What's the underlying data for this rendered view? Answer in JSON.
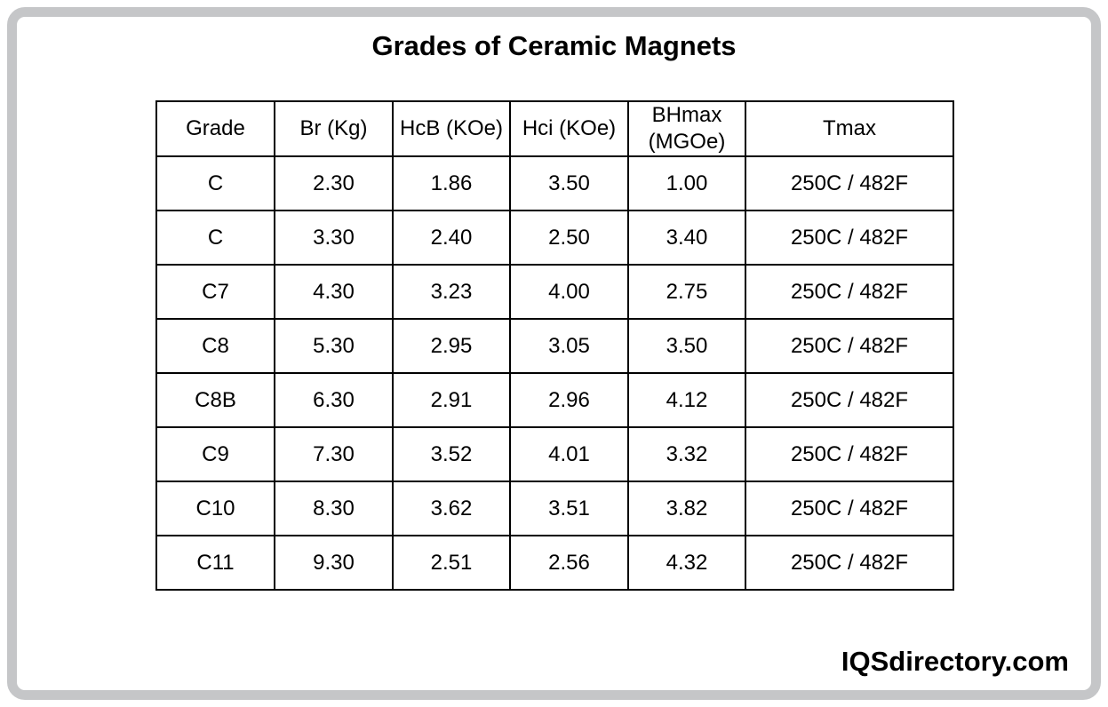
{
  "chart_data": {
    "type": "table",
    "title": "Grades of Ceramic Magnets",
    "columns": [
      "Grade",
      "Br (Kg)",
      "HcB (KOe)",
      "Hci (KOe)",
      "BHmax (MGOe)",
      "Tmax"
    ],
    "rows": [
      [
        "C",
        "2.30",
        "1.86",
        "3.50",
        "1.00",
        "250C / 482F"
      ],
      [
        "C",
        "3.30",
        "2.40",
        "2.50",
        "3.40",
        "250C / 482F"
      ],
      [
        "C7",
        "4.30",
        "3.23",
        "4.00",
        "2.75",
        "250C / 482F"
      ],
      [
        "C8",
        "5.30",
        "2.95",
        "3.05",
        "3.50",
        "250C / 482F"
      ],
      [
        "C8B",
        "6.30",
        "2.91",
        "2.96",
        "4.12",
        "250C / 482F"
      ],
      [
        "C9",
        "7.30",
        "3.52",
        "4.01",
        "3.32",
        "250C / 482F"
      ],
      [
        "C10",
        "8.30",
        "3.62",
        "3.51",
        "3.82",
        "250C / 482F"
      ],
      [
        "C11",
        "9.30",
        "2.51",
        "2.56",
        "4.32",
        "250C / 482F"
      ]
    ]
  },
  "branding": {
    "watermark": "IQSdirectory.com"
  },
  "colors": {
    "frame_border": "#c5c6c8",
    "table_border": "#000000",
    "background": "#ffffff",
    "text": "#000000"
  }
}
